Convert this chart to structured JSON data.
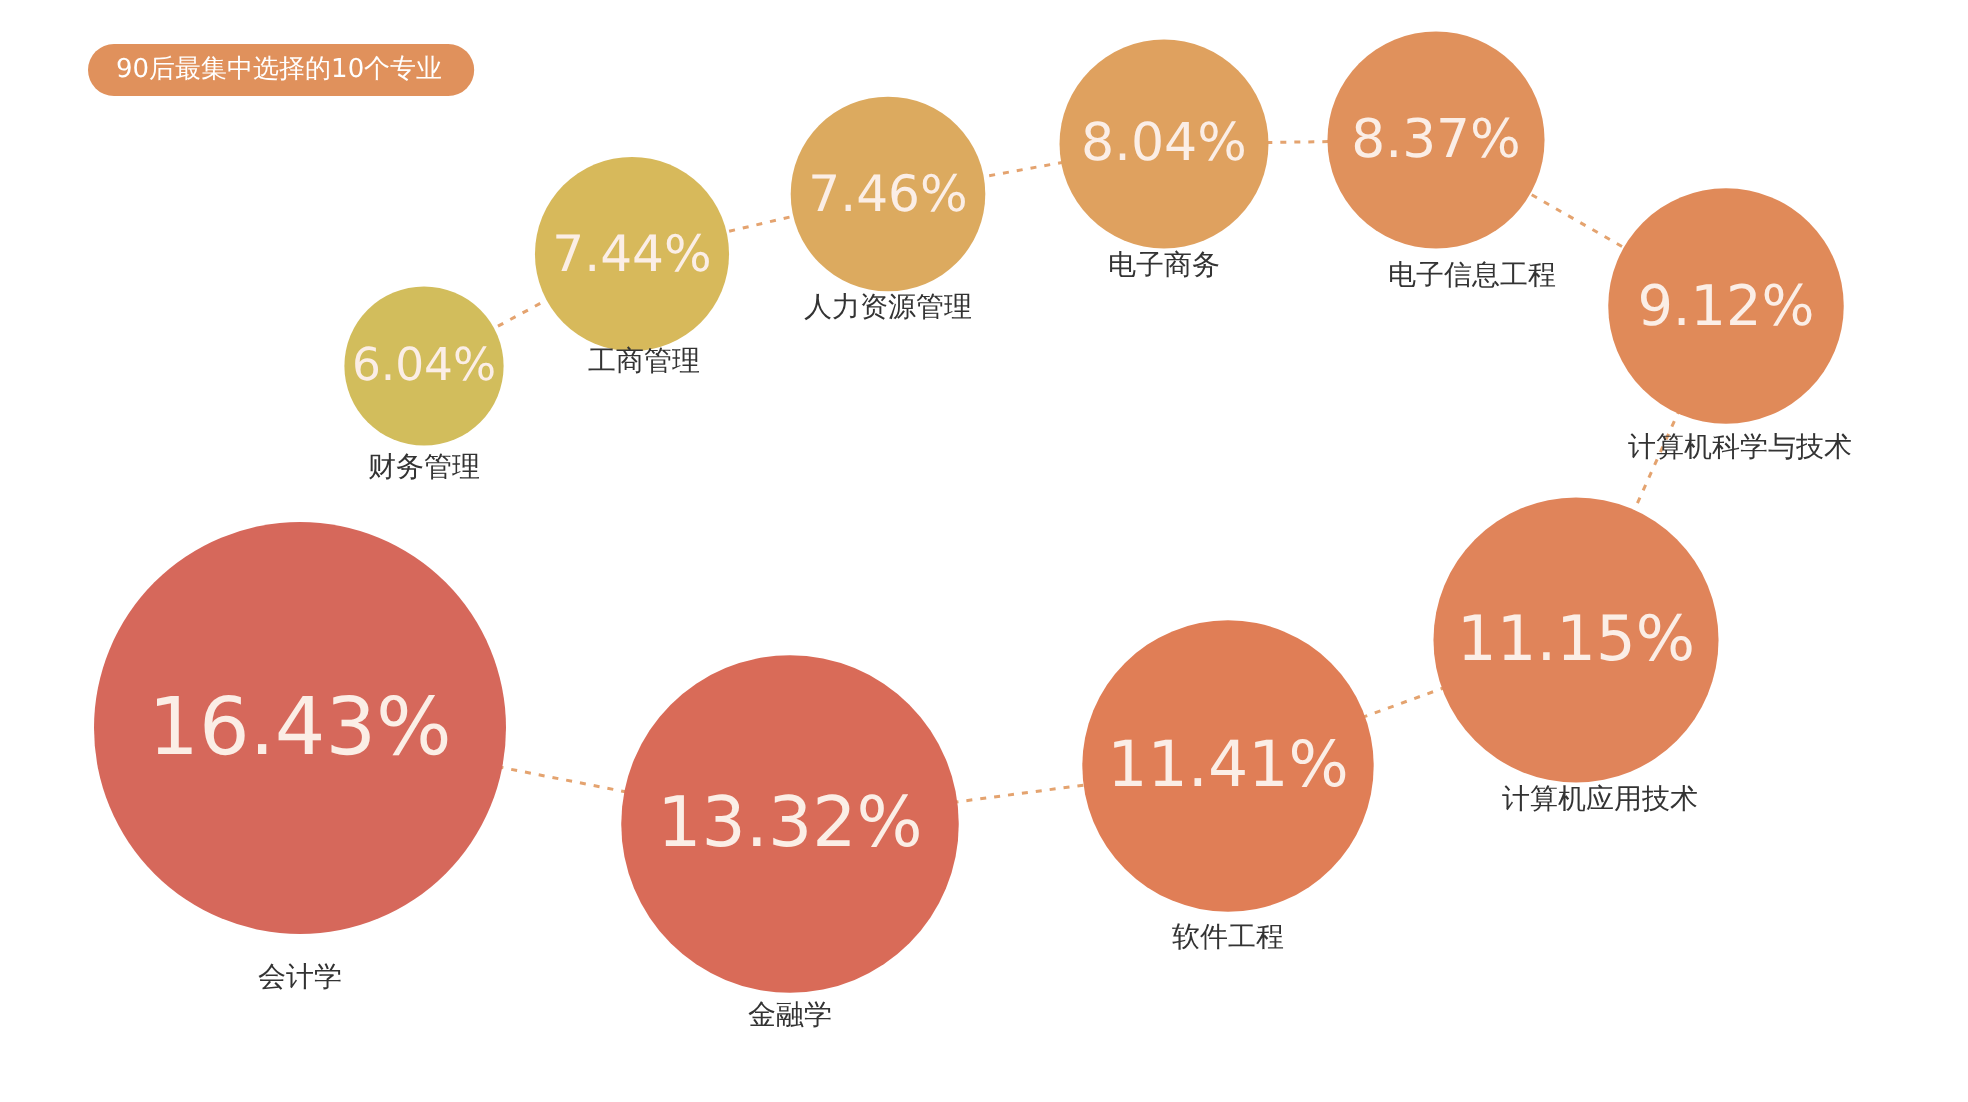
{
  "chart_data": {
    "type": "other",
    "title": "90后最集中选择的10个专业",
    "categories": [
      "财务管理",
      "工商管理",
      "人力资源管理",
      "电子商务",
      "电子信息工程",
      "计算机科学与技术",
      "计算机应用技术",
      "软件工程",
      "金融学",
      "会计学"
    ],
    "values": [
      6.04,
      7.44,
      7.46,
      8.04,
      8.37,
      9.12,
      11.15,
      11.41,
      13.32,
      16.43
    ],
    "value_labels": [
      "6.04%",
      "7.44%",
      "7.46%",
      "8.04%",
      "8.37%",
      "9.12%",
      "11.15%",
      "11.41%",
      "13.32%",
      "16.43%"
    ],
    "colors": [
      "#d2bd5c",
      "#d7b95b",
      "#dcaa5f",
      "#dfa15f",
      "#e0915c",
      "#e08a59",
      "#e0845a",
      "#e07e56",
      "#d96b58",
      "#d6685b"
    ]
  }
}
